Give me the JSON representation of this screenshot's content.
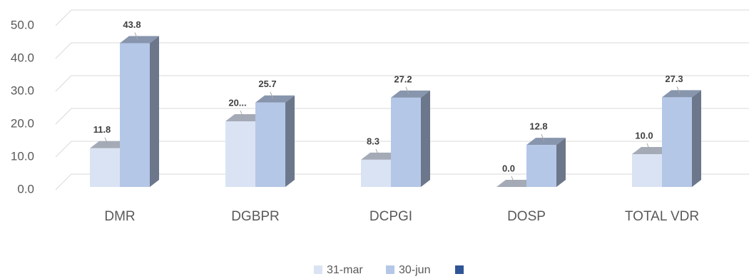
{
  "chart_data": {
    "type": "bar3d",
    "categories": [
      "DMR",
      "DGBPR",
      "DCPGI",
      "DOSP",
      "TOTAL  VDR"
    ],
    "series": [
      {
        "name": "31-mar",
        "color": "#dae3f3",
        "values": [
          11.8,
          20.0,
          8.3,
          0.0,
          10.0
        ],
        "value_labels": [
          "11.8",
          "20...",
          "8.3",
          "0.0",
          "10.0"
        ]
      },
      {
        "name": "30-jun",
        "color": "#b4c7e7",
        "values": [
          43.8,
          25.7,
          27.2,
          12.8,
          27.3
        ]
      }
    ],
    "ylim": [
      0,
      50
    ],
    "yticks": [
      {
        "value": 0,
        "label": "0.0"
      },
      {
        "value": 10,
        "label": "10.0"
      },
      {
        "value": 20,
        "label": "20.0"
      },
      {
        "value": 30,
        "label": "30.0"
      },
      {
        "value": 40,
        "label": "40.0"
      },
      {
        "value": 50,
        "label": "50.0"
      }
    ],
    "grid": true
  }
}
